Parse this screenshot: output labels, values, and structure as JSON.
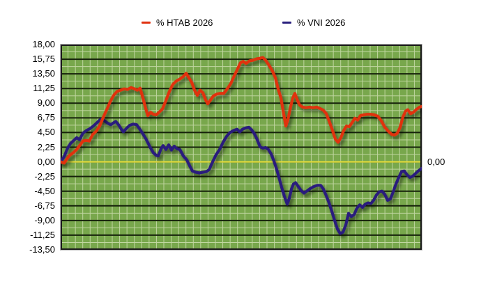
{
  "legend": {
    "series1_label": "% HTAB 2026",
    "series2_label": "% VNI 2026"
  },
  "chart_data": {
    "type": "line",
    "title": "",
    "xlabel": "",
    "ylabel": "",
    "x_tick_labels_visible": false,
    "ylim": [
      -13.5,
      18.0
    ],
    "y_tick_step": 2.25,
    "y_ticks": [
      {
        "value": 18.0,
        "label": "18,00"
      },
      {
        "value": 15.75,
        "label": "15,75"
      },
      {
        "value": 13.5,
        "label": "13,50"
      },
      {
        "value": 11.25,
        "label": "11,25"
      },
      {
        "value": 9.0,
        "label": "9,00"
      },
      {
        "value": 6.75,
        "label": "6,75"
      },
      {
        "value": 4.5,
        "label": "4,50"
      },
      {
        "value": 2.25,
        "label": "2,25"
      },
      {
        "value": 0.0,
        "label": "0,00"
      },
      {
        "value": -2.25,
        "label": "-2,25"
      },
      {
        "value": -4.5,
        "label": "-4,50"
      },
      {
        "value": -6.75,
        "label": "-6,75"
      },
      {
        "value": -9.0,
        "label": "-9,00"
      },
      {
        "value": -11.25,
        "label": "-11,25"
      },
      {
        "value": -13.5,
        "label": "-13,50"
      }
    ],
    "zero_line_value": 0.0,
    "right_axis_label": "0,00",
    "legend_position": "top",
    "grid": {
      "background": "#78a74c",
      "minor_color": "#c0d6a0",
      "major_color": "#15210a",
      "zero_line_color": "#ece43c",
      "border_color": "#1a1a1a"
    },
    "series": [
      {
        "name": "% VNI 2026",
        "color": "#291f7d",
        "points": [
          [
            0,
            0.0
          ],
          [
            5,
            0.8
          ],
          [
            10,
            2.1
          ],
          [
            14,
            2.8
          ],
          [
            18,
            3.2
          ],
          [
            23,
            3.7
          ],
          [
            27,
            3.4
          ],
          [
            32,
            4.4
          ],
          [
            37,
            4.8
          ],
          [
            42,
            5.1
          ],
          [
            47,
            5.5
          ],
          [
            52,
            6.0
          ],
          [
            57,
            6.5
          ],
          [
            60,
            6.6
          ],
          [
            64,
            6.2
          ],
          [
            68,
            5.9
          ],
          [
            72,
            5.7
          ],
          [
            76,
            6.0
          ],
          [
            79,
            6.2
          ],
          [
            83,
            5.7
          ],
          [
            87,
            5.0
          ],
          [
            90,
            4.6
          ],
          [
            94,
            5.1
          ],
          [
            99,
            5.6
          ],
          [
            104,
            5.8
          ],
          [
            109,
            5.7
          ],
          [
            113,
            5.1
          ],
          [
            118,
            4.3
          ],
          [
            123,
            3.4
          ],
          [
            128,
            2.3
          ],
          [
            133,
            1.4
          ],
          [
            137,
            1.0
          ],
          [
            140,
            0.9
          ],
          [
            144,
            2.0
          ],
          [
            147,
            2.5
          ],
          [
            151,
            1.9
          ],
          [
            155,
            2.6
          ],
          [
            159,
            1.8
          ],
          [
            163,
            2.4
          ],
          [
            167,
            2.0
          ],
          [
            171,
            1.9
          ],
          [
            176,
            0.9
          ],
          [
            181,
            0.3
          ],
          [
            185,
            -0.6
          ],
          [
            189,
            -1.4
          ],
          [
            194,
            -1.6
          ],
          [
            199,
            -1.7
          ],
          [
            204,
            -1.6
          ],
          [
            209,
            -1.5
          ],
          [
            213,
            -1.2
          ],
          [
            218,
            0.0
          ],
          [
            223,
            1.1
          ],
          [
            228,
            1.9
          ],
          [
            233,
            3.0
          ],
          [
            238,
            3.9
          ],
          [
            243,
            4.5
          ],
          [
            248,
            4.8
          ],
          [
            253,
            5.0
          ],
          [
            257,
            4.6
          ],
          [
            261,
            5.0
          ],
          [
            265,
            5.2
          ],
          [
            270,
            5.3
          ],
          [
            274,
            4.9
          ],
          [
            278,
            4.3
          ],
          [
            282,
            3.4
          ],
          [
            286,
            2.3
          ],
          [
            290,
            2.1
          ],
          [
            294,
            2.2
          ],
          [
            298,
            1.9
          ],
          [
            302,
            1.2
          ],
          [
            306,
            0.1
          ],
          [
            310,
            -1.2
          ],
          [
            314,
            -2.7
          ],
          [
            317,
            -3.9
          ],
          [
            321,
            -5.3
          ],
          [
            325,
            -6.5
          ],
          [
            328,
            -5.6
          ],
          [
            331,
            -4.2
          ],
          [
            334,
            -3.4
          ],
          [
            337,
            -3.2
          ],
          [
            341,
            -3.8
          ],
          [
            345,
            -4.4
          ],
          [
            349,
            -4.8
          ],
          [
            353,
            -4.5
          ],
          [
            358,
            -4.1
          ],
          [
            363,
            -3.8
          ],
          [
            368,
            -3.6
          ],
          [
            373,
            -3.6
          ],
          [
            377,
            -4.2
          ],
          [
            381,
            -5.2
          ],
          [
            385,
            -6.3
          ],
          [
            389,
            -7.6
          ],
          [
            393,
            -9.0
          ],
          [
            397,
            -10.3
          ],
          [
            401,
            -11.0
          ],
          [
            405,
            -10.8
          ],
          [
            409,
            -9.7
          ],
          [
            413,
            -7.9
          ],
          [
            417,
            -8.4
          ],
          [
            421,
            -8.1
          ],
          [
            425,
            -7.1
          ],
          [
            429,
            -6.6
          ],
          [
            433,
            -7.0
          ],
          [
            437,
            -6.5
          ],
          [
            441,
            -6.3
          ],
          [
            445,
            -6.4
          ],
          [
            449,
            -5.9
          ],
          [
            453,
            -5.1
          ],
          [
            457,
            -4.6
          ],
          [
            461,
            -4.5
          ],
          [
            465,
            -5.0
          ],
          [
            469,
            -5.9
          ],
          [
            473,
            -5.7
          ],
          [
            477,
            -4.6
          ],
          [
            481,
            -3.4
          ],
          [
            485,
            -2.4
          ],
          [
            489,
            -1.5
          ],
          [
            493,
            -1.4
          ],
          [
            497,
            -2.0
          ],
          [
            501,
            -2.4
          ],
          [
            505,
            -2.2
          ],
          [
            509,
            -1.8
          ],
          [
            513,
            -1.4
          ],
          [
            518,
            -1.0
          ]
        ]
      },
      {
        "name": "% HTAB 2026",
        "color": "#e0300f",
        "points": [
          [
            0,
            0.0
          ],
          [
            5,
            -0.2
          ],
          [
            10,
            0.6
          ],
          [
            13,
            1.0
          ],
          [
            18,
            1.4
          ],
          [
            23,
            1.9
          ],
          [
            28,
            2.6
          ],
          [
            32,
            3.2
          ],
          [
            37,
            3.3
          ],
          [
            41,
            3.2
          ],
          [
            46,
            4.2
          ],
          [
            51,
            4.7
          ],
          [
            56,
            5.5
          ],
          [
            61,
            6.8
          ],
          [
            66,
            8.0
          ],
          [
            71,
            9.2
          ],
          [
            76,
            10.2
          ],
          [
            81,
            10.8
          ],
          [
            86,
            11.0
          ],
          [
            91,
            11.2
          ],
          [
            96,
            11.1
          ],
          [
            101,
            11.4
          ],
          [
            106,
            11.2
          ],
          [
            110,
            11.0
          ],
          [
            114,
            11.3
          ],
          [
            118,
            9.8
          ],
          [
            122,
            8.2
          ],
          [
            125,
            7.1
          ],
          [
            129,
            7.6
          ],
          [
            133,
            7.3
          ],
          [
            137,
            7.2
          ],
          [
            141,
            7.6
          ],
          [
            146,
            8.1
          ],
          [
            151,
            9.4
          ],
          [
            156,
            10.8
          ],
          [
            161,
            11.9
          ],
          [
            166,
            12.4
          ],
          [
            171,
            12.7
          ],
          [
            176,
            13.1
          ],
          [
            180,
            13.6
          ],
          [
            184,
            12.9
          ],
          [
            188,
            12.2
          ],
          [
            192,
            11.0
          ],
          [
            196,
            10.2
          ],
          [
            200,
            11.0
          ],
          [
            204,
            10.6
          ],
          [
            208,
            9.5
          ],
          [
            211,
            8.9
          ],
          [
            215,
            9.5
          ],
          [
            219,
            10.1
          ],
          [
            224,
            10.4
          ],
          [
            229,
            10.5
          ],
          [
            234,
            10.5
          ],
          [
            239,
            11.2
          ],
          [
            244,
            12.0
          ],
          [
            249,
            13.2
          ],
          [
            254,
            14.3
          ],
          [
            258,
            15.2
          ],
          [
            262,
            15.4
          ],
          [
            266,
            15.1
          ],
          [
            271,
            15.5
          ],
          [
            276,
            15.6
          ],
          [
            281,
            15.8
          ],
          [
            286,
            15.9
          ],
          [
            290,
            16.0
          ],
          [
            294,
            15.6
          ],
          [
            299,
            14.8
          ],
          [
            304,
            13.9
          ],
          [
            308,
            12.9
          ],
          [
            312,
            11.2
          ],
          [
            316,
            9.8
          ],
          [
            320,
            7.3
          ],
          [
            323,
            5.5
          ],
          [
            326,
            6.5
          ],
          [
            330,
            8.5
          ],
          [
            333,
            9.8
          ],
          [
            336,
            10.5
          ],
          [
            339,
            9.6
          ],
          [
            343,
            8.7
          ],
          [
            347,
            8.4
          ],
          [
            352,
            8.3
          ],
          [
            357,
            8.4
          ],
          [
            362,
            8.3
          ],
          [
            367,
            8.4
          ],
          [
            372,
            8.2
          ],
          [
            377,
            7.9
          ],
          [
            381,
            7.4
          ],
          [
            385,
            6.3
          ],
          [
            390,
            4.8
          ],
          [
            394,
            3.5
          ],
          [
            398,
            3.0
          ],
          [
            402,
            3.7
          ],
          [
            406,
            4.8
          ],
          [
            410,
            5.5
          ],
          [
            414,
            5.4
          ],
          [
            418,
            6.0
          ],
          [
            422,
            6.7
          ],
          [
            426,
            6.4
          ],
          [
            430,
            7.1
          ],
          [
            435,
            7.2
          ],
          [
            440,
            7.3
          ],
          [
            445,
            7.3
          ],
          [
            450,
            7.2
          ],
          [
            455,
            7.0
          ],
          [
            460,
            6.3
          ],
          [
            465,
            5.3
          ],
          [
            470,
            4.7
          ],
          [
            475,
            4.2
          ],
          [
            479,
            4.1
          ],
          [
            483,
            4.4
          ],
          [
            487,
            5.3
          ],
          [
            491,
            6.9
          ],
          [
            495,
            7.8
          ],
          [
            498,
            8.0
          ],
          [
            502,
            7.4
          ],
          [
            506,
            7.6
          ],
          [
            511,
            8.1
          ],
          [
            515,
            8.4
          ],
          [
            518,
            8.5
          ]
        ]
      }
    ]
  }
}
